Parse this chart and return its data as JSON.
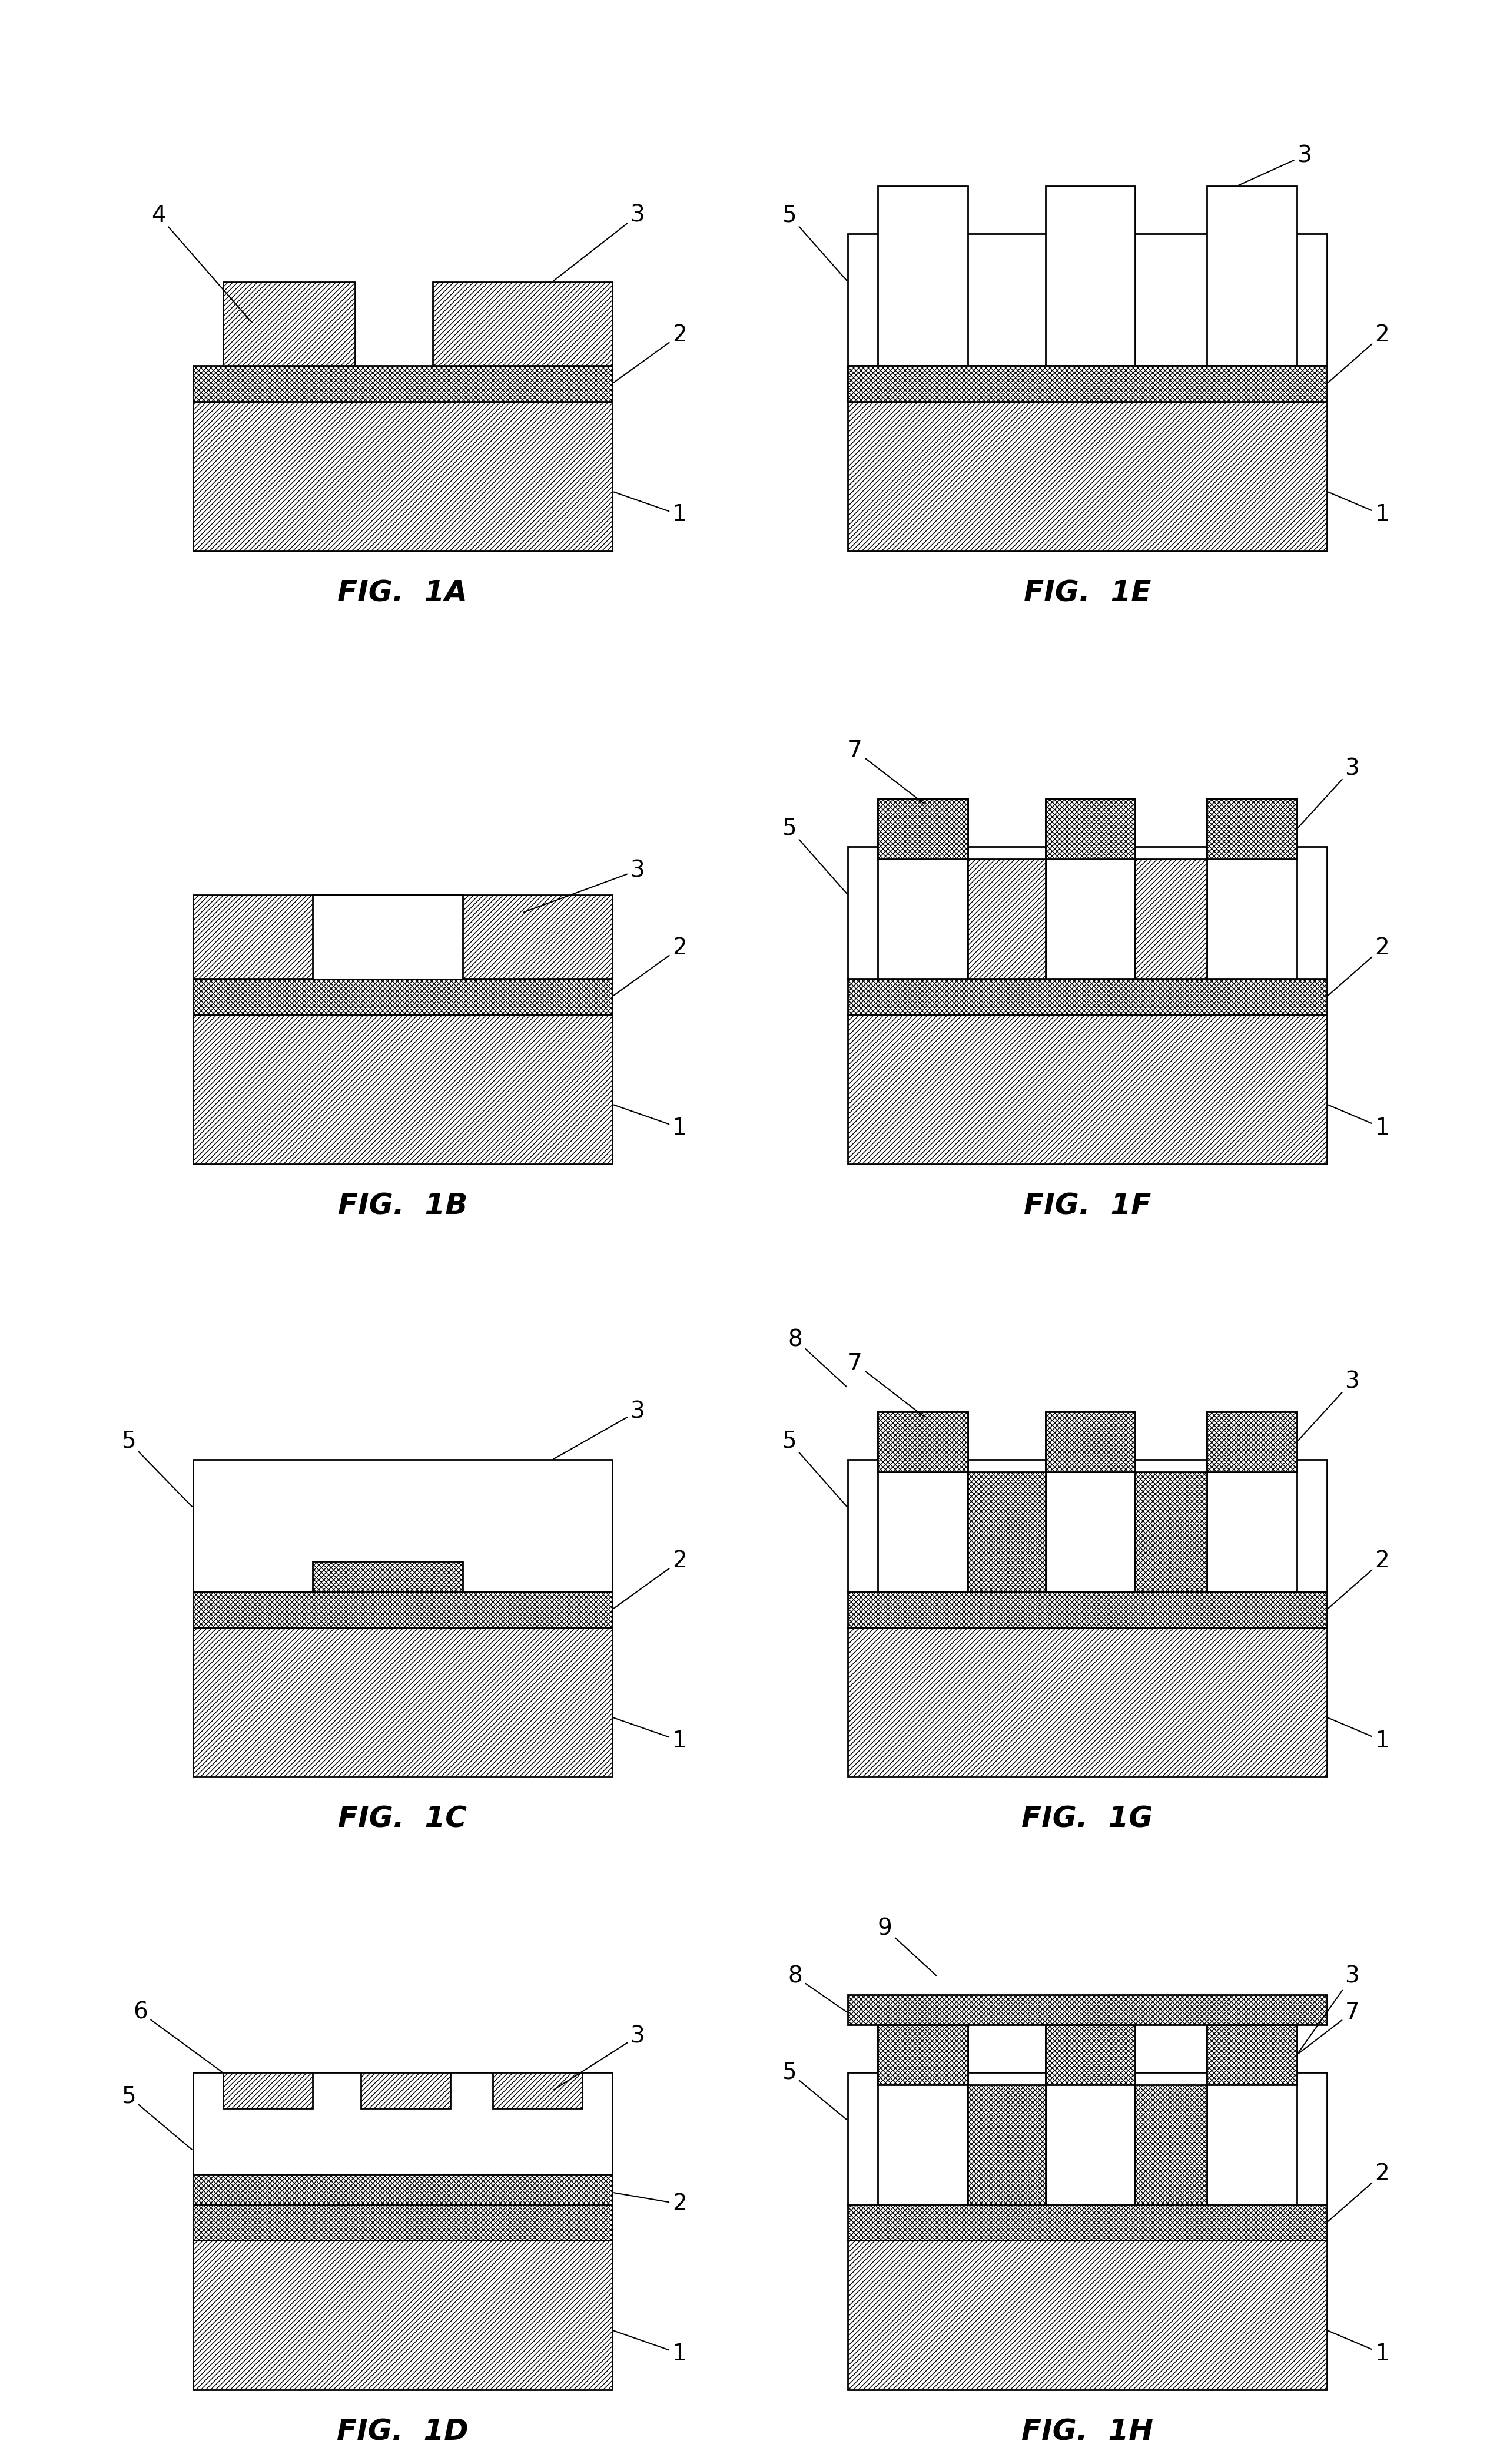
{
  "fig_width": 25.31,
  "fig_height": 41.85,
  "bg_color": "#ffffff",
  "line_color": "#000000",
  "hatch_diag": "////",
  "hatch_cross": "xxxx",
  "label_fontsize": 28,
  "fig_label_fontsize": 36,
  "figures": [
    {
      "name": "FIG. 1A",
      "col": 0,
      "row": 0
    },
    {
      "name": "FIG. 1B",
      "col": 0,
      "row": 1
    },
    {
      "name": "FIG. 1C",
      "col": 0,
      "row": 2
    },
    {
      "name": "FIG. 1D",
      "col": 0,
      "row": 3
    },
    {
      "name": "FIG. 1E",
      "col": 1,
      "row": 0
    },
    {
      "name": "FIG. 1F",
      "col": 1,
      "row": 1
    },
    {
      "name": "FIG. 1G",
      "col": 1,
      "row": 2
    },
    {
      "name": "FIG. 1H",
      "col": 1,
      "row": 3
    }
  ]
}
